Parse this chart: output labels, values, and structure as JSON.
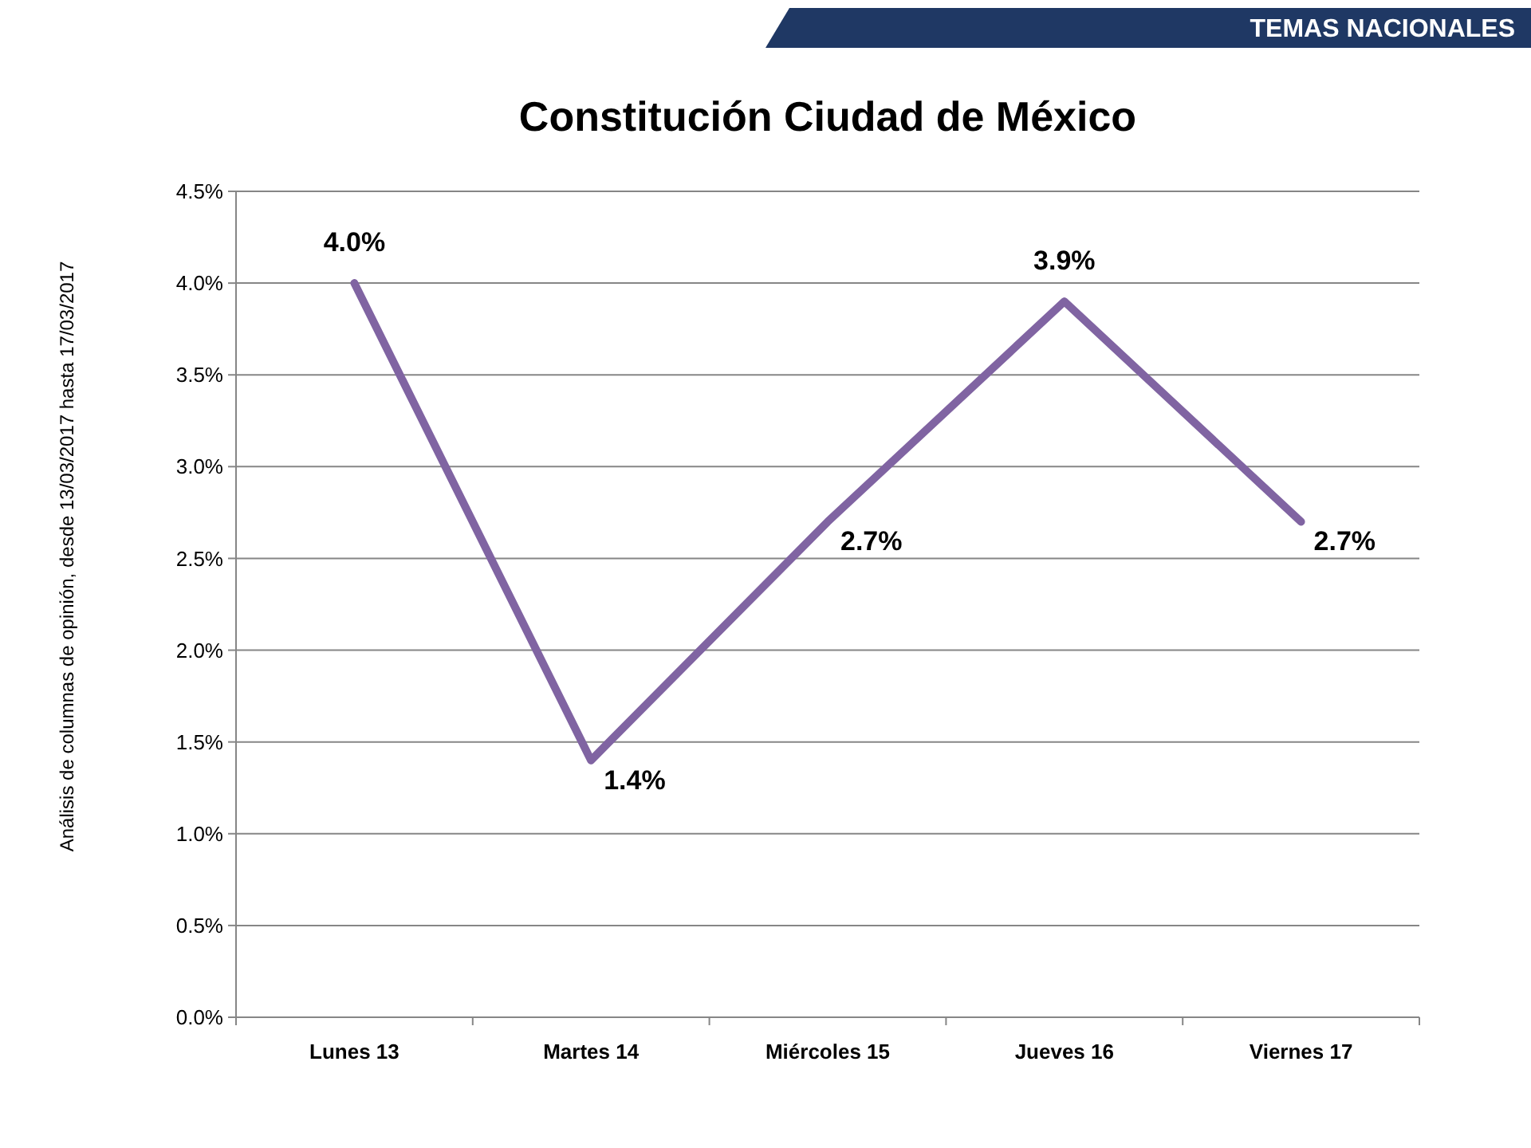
{
  "chart_data": {
    "type": "line",
    "title": "Constitución Ciudad de México",
    "annotations": [
      "TEMAS NACIONALES",
      "Análisis de columnas de opinión, desde 13/03/2017 hasta 17/03/2017"
    ],
    "categories": [
      "Lunes 13",
      "Martes 14",
      "Miércoles 15",
      "Jueves 16",
      "Viernes 17"
    ],
    "series": [
      {
        "color": "#8064a2",
        "values": [
          4.0,
          1.4,
          2.7,
          3.9,
          2.7
        ],
        "value_labels": [
          "4.0%",
          "1.4%",
          "2.7%",
          "3.9%",
          "2.7%"
        ]
      }
    ],
    "ylim": [
      0,
      4.5
    ],
    "yticks": [
      {
        "value": 0,
        "label": "0.0%"
      },
      {
        "value": 0.5,
        "label": "0.5%"
      },
      {
        "value": 1,
        "label": "1.0%"
      },
      {
        "value": 1.5,
        "label": "1.5%"
      },
      {
        "value": 2,
        "label": "2.0%"
      },
      {
        "value": 2.5,
        "label": "2.5%"
      },
      {
        "value": 3,
        "label": "3.0%"
      },
      {
        "value": 3.5,
        "label": "3.5%"
      },
      {
        "value": 4,
        "label": "4.0%"
      },
      {
        "value": 4.5,
        "label": "4.5%"
      }
    ],
    "grid": "y",
    "marker": "none",
    "line_style": "solid"
  }
}
